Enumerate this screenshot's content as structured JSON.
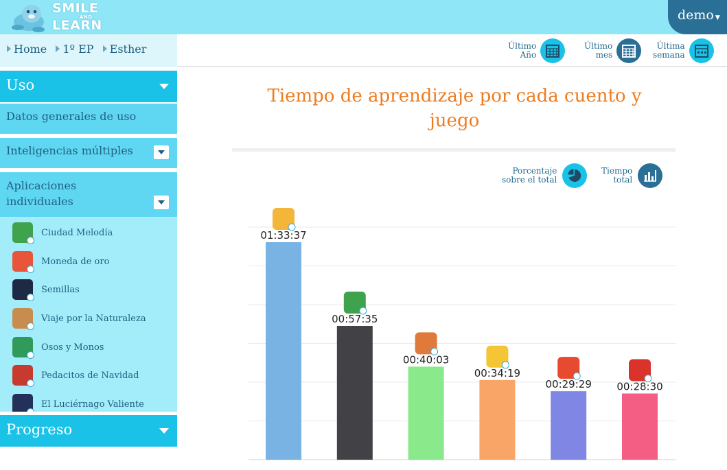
{
  "header": {
    "logo_line1": "SMILE",
    "logo_and": "AND",
    "logo_line2": "LEARN",
    "user": "demo"
  },
  "breadcrumb": [
    "Home",
    "1º EP",
    "Esther"
  ],
  "periods": [
    {
      "line1": "Último",
      "line2": "Año",
      "color": "#19c2e6",
      "icon": "calendar-year-icon"
    },
    {
      "line1": "Último",
      "line2": "mes",
      "color": "#2a6f96",
      "icon": "calendar-month-icon"
    },
    {
      "line1": "Última",
      "line2": "semana",
      "color": "#19c2e6",
      "icon": "calendar-week-icon"
    }
  ],
  "sidebar": {
    "uso": "Uso",
    "datos": "Datos generales de uso",
    "inteligencias": "Inteligencias múltiples",
    "aplicaciones": "Aplicaciones individuales",
    "progreso": "Progreso",
    "apps": [
      {
        "name": "Ciudad Melodía",
        "color": "#3fa34d",
        "icon": "ciudad-melodia-app-icon"
      },
      {
        "name": "Moneda de oro",
        "color": "#e8553a",
        "icon": "moneda-de-oro-app-icon"
      },
      {
        "name": "Semillas",
        "color": "#1e2a44",
        "icon": "semillas-app-icon"
      },
      {
        "name": "Viaje por la Naturaleza",
        "color": "#c98c4f",
        "icon": "viaje-naturaleza-app-icon"
      },
      {
        "name": "Osos y Monos",
        "color": "#2f9a5a",
        "icon": "osos-monos-app-icon"
      },
      {
        "name": "Pedacitos de Navidad",
        "color": "#c83a2e",
        "icon": "pedacitos-navidad-app-icon"
      },
      {
        "name": "El Luciérnago Valiente",
        "color": "#23305a",
        "icon": "luciernago-app-icon"
      }
    ]
  },
  "main": {
    "title": "Tiempo de aprendizaje por cada cuento y juego",
    "view_percent_line1": "Porcentaje",
    "view_percent_line2": "sobre el total",
    "view_total_line1": "Tiempo",
    "view_total_line2": "total"
  },
  "chart_data": {
    "type": "bar",
    "title": "Tiempo de aprendizaje por cada cuento y juego",
    "xlabel": "",
    "ylabel": "",
    "grid": true,
    "ylim_seconds": [
      0,
      6000
    ],
    "bars": [
      {
        "label": "01:33:37",
        "seconds": 5617,
        "color": "#78b3e4",
        "icon_color": "#f3b53a",
        "icon": "app-icon-1"
      },
      {
        "label": "00:57:35",
        "seconds": 3455,
        "color": "#414146",
        "icon_color": "#3fa34d",
        "icon": "app-icon-2"
      },
      {
        "label": "00:40:03",
        "seconds": 2403,
        "color": "#8ae98a",
        "icon_color": "#e07a3a",
        "icon": "app-icon-3"
      },
      {
        "label": "00:34:19",
        "seconds": 2059,
        "color": "#f9a568",
        "icon_color": "#f4c534",
        "icon": "app-icon-4"
      },
      {
        "label": "00:29:29",
        "seconds": 1769,
        "color": "#7f86e3",
        "icon_color": "#e84a2f",
        "icon": "app-icon-5"
      },
      {
        "label": "00:28:30",
        "seconds": 1710,
        "color": "#f45e84",
        "icon_color": "#d9332b",
        "icon": "app-icon-6"
      }
    ]
  }
}
